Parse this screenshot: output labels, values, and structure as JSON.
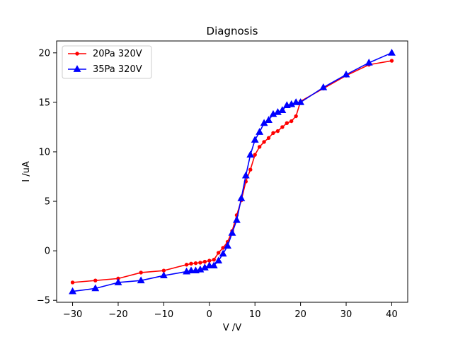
{
  "chart_data": {
    "type": "line",
    "title": "Diagnosis",
    "xlabel": "V /V",
    "ylabel": "I /uA",
    "xlim": [
      -33.5,
      43.5
    ],
    "ylim": [
      -5.2,
      21.2
    ],
    "xticks": [
      -30,
      -20,
      -10,
      0,
      10,
      20,
      30,
      40
    ],
    "yticks": [
      -5,
      0,
      5,
      10,
      15,
      20
    ],
    "xtick_labels": [
      "−30",
      "−20",
      "−10",
      "0",
      "10",
      "20",
      "30",
      "40"
    ],
    "ytick_labels": [
      "−5",
      "0",
      "5",
      "10",
      "15",
      "20"
    ],
    "grid": false,
    "legend_position": "upper-left",
    "series": [
      {
        "name": "20Pa 320V",
        "color": "#ff0000",
        "marker": "circle",
        "x": [
          -30,
          -25,
          -20,
          -15,
          -10,
          -5,
          -4,
          -3,
          -2,
          -1,
          0,
          1,
          2,
          3,
          4,
          5,
          6,
          7,
          8,
          9,
          10,
          11,
          12,
          13,
          14,
          15,
          16,
          17,
          18,
          19,
          20,
          25,
          30,
          35,
          40
        ],
        "y": [
          -3.2,
          -3.0,
          -2.8,
          -2.2,
          -2.0,
          -1.4,
          -1.3,
          -1.25,
          -1.2,
          -1.1,
          -1.0,
          -0.9,
          -0.2,
          0.3,
          0.9,
          2.0,
          3.6,
          5.1,
          7.0,
          8.2,
          9.7,
          10.5,
          11.0,
          11.4,
          11.9,
          12.1,
          12.5,
          12.9,
          13.1,
          13.6,
          15.1,
          16.4,
          17.7,
          18.8,
          19.2
        ]
      },
      {
        "name": "35Pa 320V",
        "color": "#0000ff",
        "marker": "triangle",
        "x": [
          -30,
          -25,
          -20,
          -15,
          -10,
          -5,
          -4,
          -3,
          -2,
          -1,
          0,
          1,
          2,
          3,
          4,
          5,
          6,
          7,
          8,
          9,
          10,
          11,
          12,
          13,
          14,
          15,
          16,
          17,
          18,
          19,
          20,
          25,
          30,
          35,
          40
        ],
        "y": [
          -4.1,
          -3.8,
          -3.2,
          -3.0,
          -2.5,
          -2.1,
          -2.0,
          -2.0,
          -1.9,
          -1.7,
          -1.5,
          -1.5,
          -1.0,
          -0.3,
          0.5,
          1.8,
          3.1,
          5.3,
          7.6,
          9.7,
          11.2,
          12.0,
          12.9,
          13.2,
          13.8,
          14.0,
          14.2,
          14.7,
          14.8,
          15.0,
          15.0,
          16.5,
          17.8,
          19.0,
          20.0
        ]
      }
    ]
  }
}
